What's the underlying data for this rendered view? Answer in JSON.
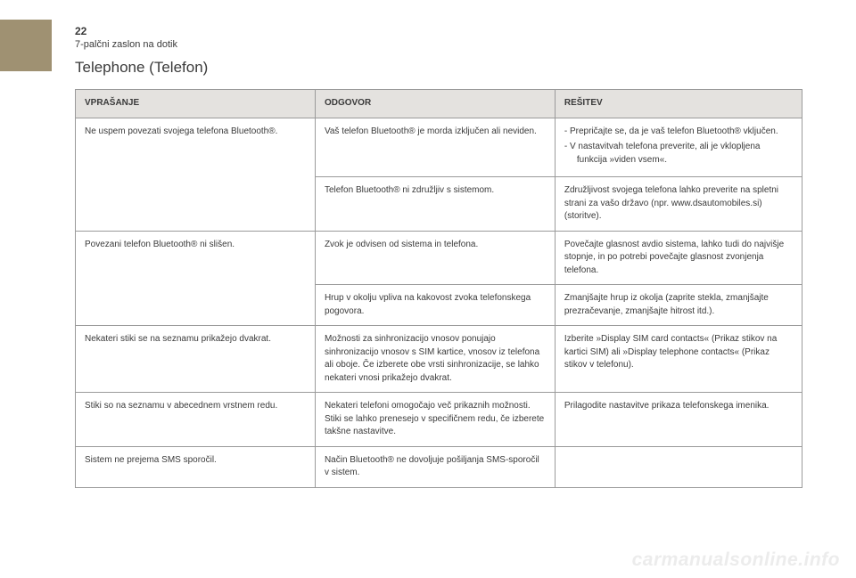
{
  "page_number": "22",
  "section_label": "7-palčni zaslon na dotik",
  "title": "Telephone (Telefon)",
  "headers": {
    "q": "VPRAŠANJE",
    "a": "ODGOVOR",
    "s": "REŠITEV"
  },
  "r1": {
    "q": "Ne uspem povezati svojega telefona Bluetooth®.",
    "a1": "Vaš telefon Bluetooth® je morda izključen ali neviden.",
    "s1_item1": "Prepričajte se, da je vaš telefon Bluetooth® vključen.",
    "s1_item2": "V nastavitvah telefona preverite, ali je vklopljena funkcija »viden vsem«.",
    "a2": "Telefon Bluetooth® ni združljiv s sistemom.",
    "s2": "Združljivost svojega telefona lahko preverite na spletni strani za vašo državo (npr. www.dsautomobiles.si) (storitve)."
  },
  "r2": {
    "q": "Povezani telefon Bluetooth® ni slišen.",
    "a1": "Zvok je odvisen od sistema in telefona.",
    "s1": "Povečajte glasnost avdio sistema, lahko tudi do najvišje stopnje, in po potrebi povečajte glasnost zvonjenja telefona.",
    "a2": "Hrup v okolju vpliva na kakovost zvoka telefonskega pogovora.",
    "s2": "Zmanjšajte hrup iz okolja (zaprite stekla, zmanjšajte prezračevanje, zmanjšajte hitrost itd.)."
  },
  "r3": {
    "q": "Nekateri stiki se na seznamu prikažejo dvakrat.",
    "a": "Možnosti za sinhronizacijo vnosov ponujajo sinhronizacijo vnosov s SIM kartice, vnosov iz telefona ali oboje. Če izberete obe vrsti sinhronizacije, se lahko nekateri vnosi prikažejo dvakrat.",
    "s": "Izberite »Display SIM card contacts« (Prikaz stikov na kartici SIM) ali »Display telephone contacts« (Prikaz stikov v telefonu)."
  },
  "r4": {
    "q": "Stiki so na seznamu v abecednem vrstnem redu.",
    "a": "Nekateri telefoni omogočajo več prikaznih možnosti. Stiki se lahko prenesejo v specifičnem redu, če izberete takšne nastavitve.",
    "s": "Prilagodite nastavitve prikaza telefonskega imenika."
  },
  "r5": {
    "q": "Sistem ne prejema SMS sporočil.",
    "a": "Način Bluetooth® ne dovoljuje pošiljanja SMS-sporočil v sistem.",
    "s": ""
  },
  "watermark": "carmanualsonline.info"
}
